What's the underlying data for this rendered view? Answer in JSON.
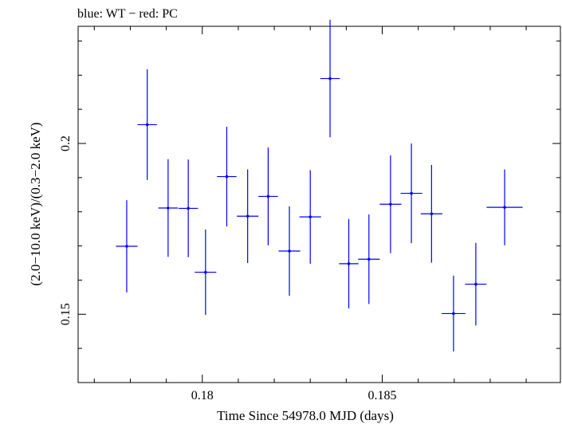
{
  "chart_data": {
    "type": "scatter",
    "title": "blue: WT − red: PC",
    "xlabel": "Time Since 54978.0 MJD (days)",
    "ylabel": "(2.0−10.0 keV)/(0.3−2.0 keV)",
    "xlim": [
      0.17655,
      0.18995
    ],
    "ylim": [
      0.13,
      0.2343
    ],
    "x_ticks": [
      {
        "value": 0.18,
        "label": "0.18"
      },
      {
        "value": 0.185,
        "label": "0.185"
      }
    ],
    "y_ticks": [
      {
        "value": 0.15,
        "label": "0.15"
      },
      {
        "value": 0.2,
        "label": "0.2"
      }
    ],
    "series": [
      {
        "color": "#0000ff",
        "points": [
          {
            "x": 0.1779,
            "xerr": 0.0003,
            "y": 0.1699,
            "yerr": 0.0135
          },
          {
            "x": 0.17847,
            "xerr": 0.00027,
            "y": 0.2055,
            "yerr": 0.0162
          },
          {
            "x": 0.17905,
            "xerr": 0.00027,
            "y": 0.1811,
            "yerr": 0.0143
          },
          {
            "x": 0.17961,
            "xerr": 0.00027,
            "y": 0.181,
            "yerr": 0.0143
          },
          {
            "x": 0.18009,
            "xerr": 0.0003,
            "y": 0.1623,
            "yerr": 0.0125
          },
          {
            "x": 0.18068,
            "xerr": 0.00027,
            "y": 0.1903,
            "yerr": 0.0146
          },
          {
            "x": 0.18126,
            "xerr": 0.0003,
            "y": 0.1787,
            "yerr": 0.0137
          },
          {
            "x": 0.18183,
            "xerr": 0.00027,
            "y": 0.1845,
            "yerr": 0.0143
          },
          {
            "x": 0.18242,
            "xerr": 0.0003,
            "y": 0.1685,
            "yerr": 0.0131
          },
          {
            "x": 0.183,
            "xerr": 0.0003,
            "y": 0.1785,
            "yerr": 0.0137
          },
          {
            "x": 0.18407,
            "xerr": 0.00027,
            "y": 0.1648,
            "yerr": 0.0131
          },
          {
            "x": 0.18355,
            "xerr": 0.00027,
            "y": 0.219,
            "yerr": 0.0172
          },
          {
            "x": 0.18463,
            "xerr": 0.0003,
            "y": 0.1661,
            "yerr": 0.0131
          },
          {
            "x": 0.18523,
            "xerr": 0.0003,
            "y": 0.1822,
            "yerr": 0.0143
          },
          {
            "x": 0.18581,
            "xerr": 0.0003,
            "y": 0.1854,
            "yerr": 0.0146
          },
          {
            "x": 0.18637,
            "xerr": 0.0003,
            "y": 0.1794,
            "yerr": 0.0143
          },
          {
            "x": 0.18698,
            "xerr": 0.00033,
            "y": 0.1502,
            "yerr": 0.0111
          },
          {
            "x": 0.1876,
            "xerr": 0.0003,
            "y": 0.1588,
            "yerr": 0.0121
          },
          {
            "x": 0.1884,
            "xerr": 0.0005,
            "y": 0.1813,
            "yerr": 0.0111
          }
        ]
      }
    ]
  }
}
